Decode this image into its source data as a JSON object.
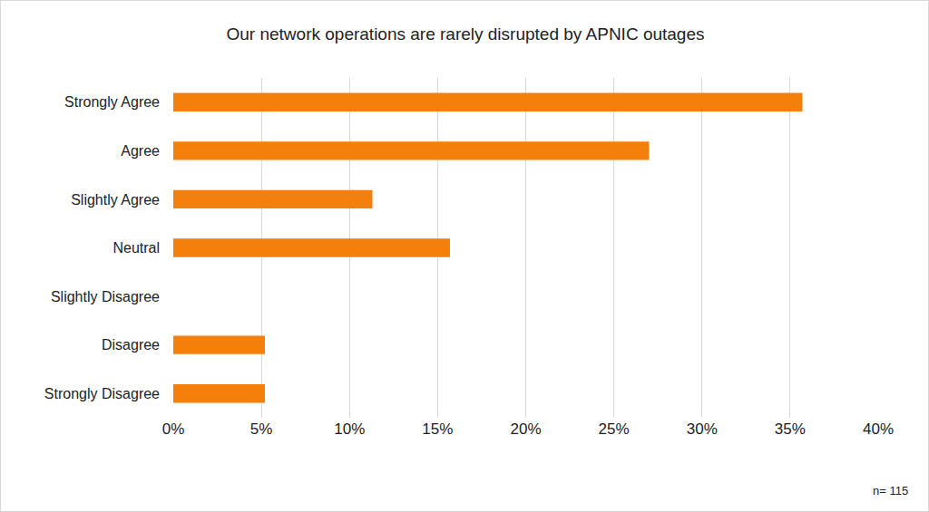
{
  "chart_data": {
    "type": "bar",
    "orientation": "horizontal",
    "title": "Our network operations are rarely disrupted by APNIC outages",
    "categories": [
      "Strongly Agree",
      "Agree",
      "Slightly Agree",
      "Neutral",
      "Slightly Disagree",
      "Disagree",
      "Strongly Disagree"
    ],
    "values": [
      35.7,
      27.0,
      11.3,
      15.7,
      0,
      5.2,
      5.2
    ],
    "color": "#f47f0a",
    "xlim": [
      0,
      40
    ],
    "xticks": [
      {
        "value": 0,
        "label": "0%"
      },
      {
        "value": 5,
        "label": "5%"
      },
      {
        "value": 10,
        "label": "10%"
      },
      {
        "value": 15,
        "label": "15%"
      },
      {
        "value": 20,
        "label": "20%"
      },
      {
        "value": 25,
        "label": "25%"
      },
      {
        "value": 30,
        "label": "30%"
      },
      {
        "value": 35,
        "label": "35%"
      },
      {
        "value": 40,
        "label": "40%"
      }
    ],
    "grid": true,
    "annotations": [
      "n= 115"
    ]
  }
}
